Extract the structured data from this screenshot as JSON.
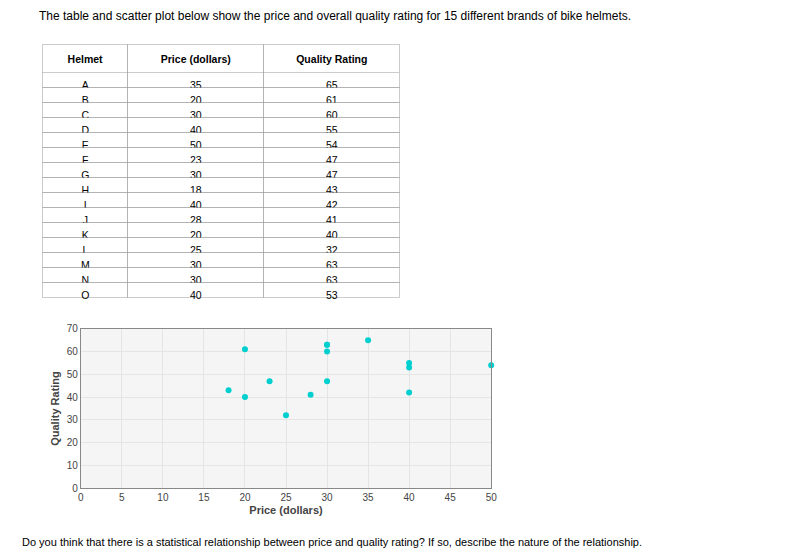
{
  "chart_data": [
    {
      "type": "table",
      "title": "The table and scatter plot below show the price and overall quality rating for 15 different brands of bike helmets.",
      "columns": [
        "Helmet",
        "Price (dollars)",
        "Quality Rating"
      ],
      "rows": [
        [
          "A",
          35,
          65
        ],
        [
          "B",
          20,
          61
        ],
        [
          "C",
          30,
          60
        ],
        [
          "D",
          40,
          55
        ],
        [
          "E",
          50,
          54
        ],
        [
          "F",
          23,
          47
        ],
        [
          "G",
          30,
          47
        ],
        [
          "H",
          18,
          43
        ],
        [
          "I",
          40,
          42
        ],
        [
          "J",
          28,
          41
        ],
        [
          "K",
          20,
          40
        ],
        [
          "L",
          25,
          32
        ],
        [
          "M",
          30,
          63
        ],
        [
          "N",
          30,
          63
        ],
        [
          "O",
          40,
          53
        ]
      ]
    },
    {
      "type": "scatter",
      "x": [
        35,
        20,
        30,
        40,
        50,
        23,
        30,
        18,
        40,
        28,
        20,
        25,
        30,
        30,
        40
      ],
      "values": [
        65,
        61,
        60,
        55,
        54,
        47,
        47,
        43,
        42,
        41,
        40,
        32,
        63,
        63,
        53
      ],
      "color": "#00CFCF",
      "marker": "circle",
      "xlabel": "Price (dollars)",
      "ylabel": "Quality Rating",
      "xlim": [
        0,
        50
      ],
      "ylim": [
        0,
        70
      ],
      "xticks": [
        0,
        5,
        10,
        15,
        20,
        25,
        30,
        35,
        40,
        45,
        50
      ],
      "yticks": [
        0,
        10,
        20,
        30,
        40,
        50,
        60,
        70
      ],
      "grid": true,
      "annotations": [
        {
          "text": "Do you think that there is a statistical relationship between price and quality rating? If so, describe the nature of the relationship."
        }
      ]
    }
  ]
}
